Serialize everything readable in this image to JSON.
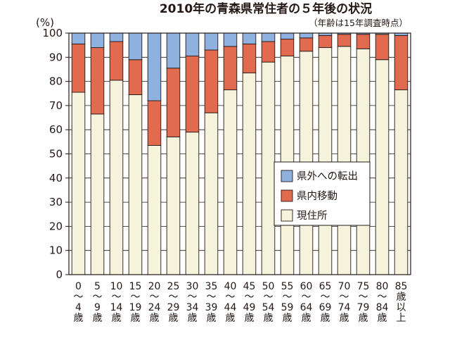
{
  "chart_data": {
    "type": "bar",
    "stacked": true,
    "title": "2010年の青森県常住者の５年後の状況",
    "note": "（年齢は15年調査時点）",
    "y_unit": "(%)",
    "ylim": [
      0,
      100
    ],
    "yticks": [
      "0",
      "10",
      "20",
      "30",
      "40",
      "50",
      "60",
      "70",
      "80",
      "90",
      "100"
    ],
    "grid": true,
    "legend_position": "center-right",
    "categories": [
      {
        "label": [
          "0",
          "〜",
          "4",
          "歳"
        ]
      },
      {
        "label": [
          "5",
          "〜",
          "9",
          "歳"
        ]
      },
      {
        "label": [
          "10",
          "〜",
          "14",
          "歳"
        ]
      },
      {
        "label": [
          "15",
          "〜",
          "19",
          "歳"
        ]
      },
      {
        "label": [
          "20",
          "〜",
          "24",
          "歳"
        ]
      },
      {
        "label": [
          "25",
          "〜",
          "29",
          "歳"
        ]
      },
      {
        "label": [
          "30",
          "〜",
          "34",
          "歳"
        ]
      },
      {
        "label": [
          "35",
          "〜",
          "39",
          "歳"
        ]
      },
      {
        "label": [
          "40",
          "〜",
          "44",
          "歳"
        ]
      },
      {
        "label": [
          "45",
          "〜",
          "49",
          "歳"
        ]
      },
      {
        "label": [
          "50",
          "〜",
          "54",
          "歳"
        ]
      },
      {
        "label": [
          "55",
          "〜",
          "59",
          "歳"
        ]
      },
      {
        "label": [
          "60",
          "〜",
          "64",
          "歳"
        ]
      },
      {
        "label": [
          "65",
          "〜",
          "69",
          "歳"
        ]
      },
      {
        "label": [
          "70",
          "〜",
          "74",
          "歳"
        ]
      },
      {
        "label": [
          "75",
          "〜",
          "79",
          "歳"
        ]
      },
      {
        "label": [
          "80",
          "〜",
          "84",
          "歳"
        ]
      },
      {
        "label": [
          "85",
          "歳",
          "以",
          "上"
        ]
      }
    ],
    "series": [
      {
        "name": "現住所",
        "color": "#f6f3dc",
        "values": [
          75.5,
          66.5,
          80.5,
          74.5,
          53.5,
          57.0,
          59.0,
          67.0,
          76.5,
          83.5,
          88.0,
          90.5,
          92.5,
          94.0,
          94.5,
          93.5,
          89.0,
          76.5
        ]
      },
      {
        "name": "県内移動",
        "color": "#e26a4f",
        "values": [
          20.0,
          27.5,
          16.0,
          14.5,
          18.5,
          28.5,
          31.5,
          26.0,
          18.0,
          12.0,
          8.5,
          7.0,
          5.5,
          5.0,
          5.0,
          6.0,
          10.5,
          22.5
        ]
      },
      {
        "name": "県外への転出",
        "color": "#8fb1df",
        "values": [
          4.5,
          6.0,
          3.5,
          11.0,
          28.0,
          14.5,
          9.5,
          7.0,
          5.5,
          4.5,
          3.5,
          2.5,
          2.0,
          1.0,
          0.5,
          0.5,
          0.5,
          1.0
        ]
      }
    ]
  }
}
